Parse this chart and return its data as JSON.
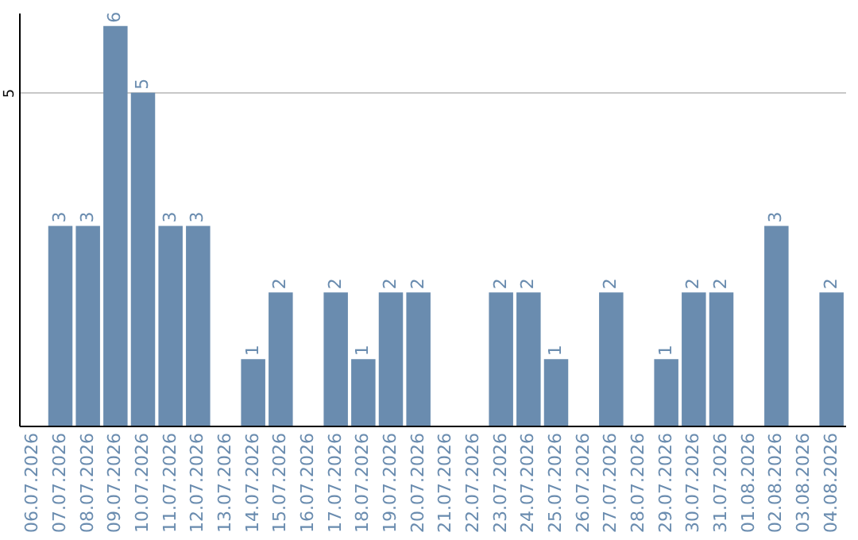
{
  "chart_data": {
    "type": "bar",
    "categories": [
      "06.07.2026",
      "07.07.2026",
      "08.07.2026",
      "09.07.2026",
      "10.07.2026",
      "11.07.2026",
      "12.07.2026",
      "13.07.2026",
      "14.07.2026",
      "15.07.2026",
      "16.07.2026",
      "17.07.2026",
      "18.07.2026",
      "19.07.2026",
      "20.07.2026",
      "21.07.2026",
      "22.07.2026",
      "23.07.2026",
      "24.07.2026",
      "25.07.2026",
      "26.07.2026",
      "27.07.2026",
      "28.07.2026",
      "29.07.2026",
      "30.07.2026",
      "31.07.2026",
      "01.08.2026",
      "02.08.2026",
      "03.08.2026",
      "04.08.2026"
    ],
    "values": [
      0,
      3,
      3,
      6,
      5,
      3,
      3,
      0,
      1,
      2,
      0,
      2,
      1,
      2,
      2,
      0,
      0,
      2,
      2,
      1,
      0,
      2,
      0,
      1,
      2,
      2,
      0,
      3,
      0,
      2
    ],
    "value_labels": [
      null,
      "3",
      "3",
      "6",
      "5",
      "3",
      "3",
      null,
      "1",
      "2",
      null,
      "2",
      "1",
      "2",
      "2",
      null,
      null,
      "2",
      "2",
      "1",
      null,
      "2",
      null,
      "1",
      "2",
      "2",
      null,
      "3",
      null,
      "2"
    ],
    "color": "#6a8caf",
    "ylim": [
      0,
      6.2
    ],
    "yticks": [
      5
    ],
    "grid": "y"
  }
}
